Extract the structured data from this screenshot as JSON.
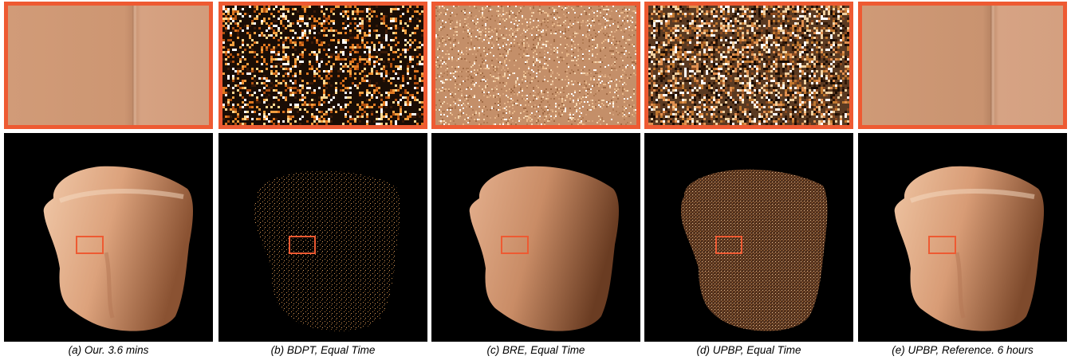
{
  "figure": {
    "accent_color": "#ee5a32",
    "panels": [
      {
        "id": "a",
        "caption": "(a) Our. 3.6 mins",
        "style": "smooth"
      },
      {
        "id": "b",
        "caption": "(b) BDPT, Equal Time",
        "style": "sparse-noise"
      },
      {
        "id": "c",
        "caption": "(c) BRE, Equal Time",
        "style": "fine-noise"
      },
      {
        "id": "d",
        "caption": "(d) UPBP, Equal Time",
        "style": "heavy-noise"
      },
      {
        "id": "e",
        "caption": "(e) UPBP, Reference. 6 hours",
        "style": "reference"
      }
    ]
  }
}
